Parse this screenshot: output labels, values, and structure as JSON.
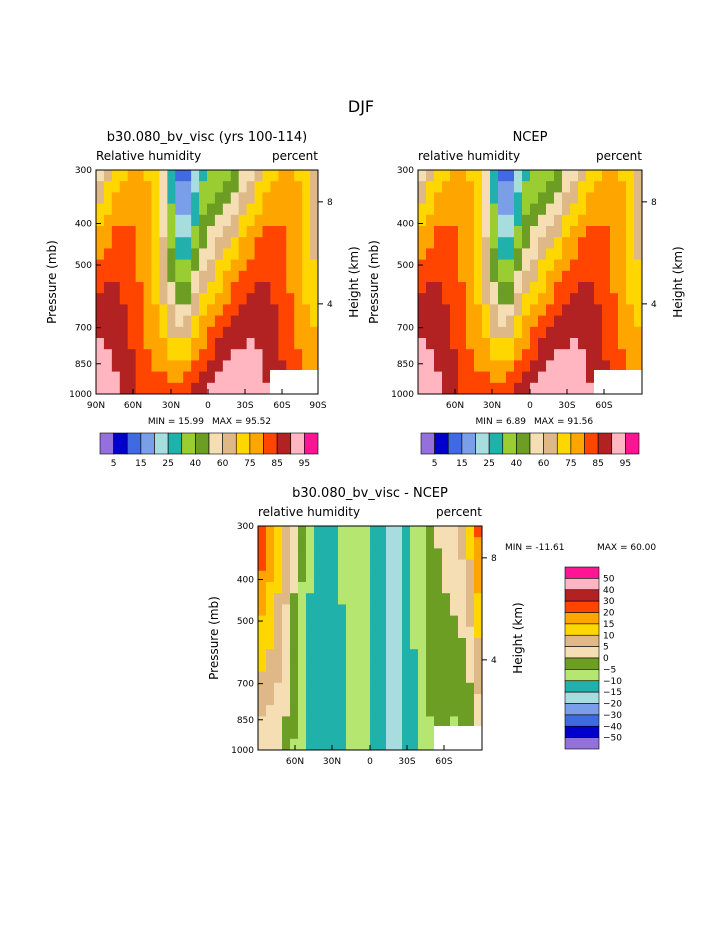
{
  "figure_title": "DJF",
  "chart_data": [
    {
      "type": "contour",
      "title": "b30.080_bv_visc (yrs 100-114)",
      "left_label": "Relative humidity",
      "right_label": "percent",
      "ylabel": "Pressure (mb)",
      "y2label": "Height (km)",
      "y_ticks": [
        "300",
        "400",
        "500",
        "700",
        "850",
        "1000"
      ],
      "y2_ticks": [
        "8",
        "4"
      ],
      "x_ticks": [
        "90N",
        "60N",
        "30N",
        "0",
        "30S",
        "60S",
        "90S"
      ],
      "min_label": "MIN =   15.99",
      "max_label": "MAX =   95.52",
      "min": 15.99,
      "max": 95.52,
      "colorbar": {
        "orientation": "horizontal",
        "colors": [
          "#9370db",
          "#0000cd",
          "#4169e1",
          "#7b9ee8",
          "#a8dde0",
          "#20b2aa",
          "#9acd32",
          "#6b9e23",
          "#f5deb3",
          "#deb887",
          "#ffd700",
          "#ffa500",
          "#ff4500",
          "#b22222",
          "#ffb6c1",
          "#ff1493"
        ],
        "labels": [
          "5",
          "15",
          "25",
          "40",
          "60",
          "75",
          "85",
          "95"
        ]
      }
    },
    {
      "type": "contour",
      "title": "NCEP",
      "left_label": "relative humidity",
      "right_label": "percent",
      "ylabel": "Pressure (mb)",
      "y2label": "Height (km)",
      "y_ticks": [
        "300",
        "400",
        "500",
        "700",
        "850",
        "1000"
      ],
      "y2_ticks": [
        "8",
        "4"
      ],
      "x_ticks": [
        "60N",
        "30N",
        "0",
        "30S",
        "60S"
      ],
      "min_label": "MIN =    6.89",
      "max_label": "MAX =   91.56",
      "min": 6.89,
      "max": 91.56,
      "colorbar": {
        "orientation": "horizontal",
        "colors": [
          "#9370db",
          "#0000cd",
          "#4169e1",
          "#7b9ee8",
          "#a8dde0",
          "#20b2aa",
          "#9acd32",
          "#6b9e23",
          "#f5deb3",
          "#deb887",
          "#ffd700",
          "#ffa500",
          "#ff4500",
          "#b22222",
          "#ffb6c1",
          "#ff1493"
        ],
        "labels": [
          "5",
          "15",
          "25",
          "40",
          "60",
          "75",
          "85",
          "95"
        ]
      }
    },
    {
      "type": "contour",
      "title": "b30.080_bv_visc - NCEP",
      "left_label": "relative humidity",
      "right_label": "percent",
      "ylabel": "Pressure (mb)",
      "y2label": "Height (km)",
      "y_ticks": [
        "300",
        "400",
        "500",
        "700",
        "850",
        "1000"
      ],
      "y2_ticks": [
        "8",
        "4"
      ],
      "x_ticks": [
        "60N",
        "30N",
        "0",
        "30S",
        "60S"
      ],
      "min_label": "MIN = -11.61",
      "max_label": "MAX =   60.00",
      "min": -11.61,
      "max": 60.0,
      "colorbar": {
        "orientation": "vertical",
        "colors": [
          "#ff1493",
          "#ffb6c1",
          "#b22222",
          "#ff4500",
          "#ffa500",
          "#ffd700",
          "#deb887",
          "#f5deb3",
          "#6b9e23",
          "#b5e66f",
          "#20b2aa",
          "#a8dde0",
          "#7b9ee8",
          "#4169e1",
          "#0000cd",
          "#9370db"
        ],
        "labels": [
          "50",
          "40",
          "30",
          "20",
          "15",
          "10",
          "5",
          "0",
          "−5",
          "−10",
          "−15",
          "−20",
          "−30",
          "−40",
          "−50"
        ]
      }
    }
  ]
}
